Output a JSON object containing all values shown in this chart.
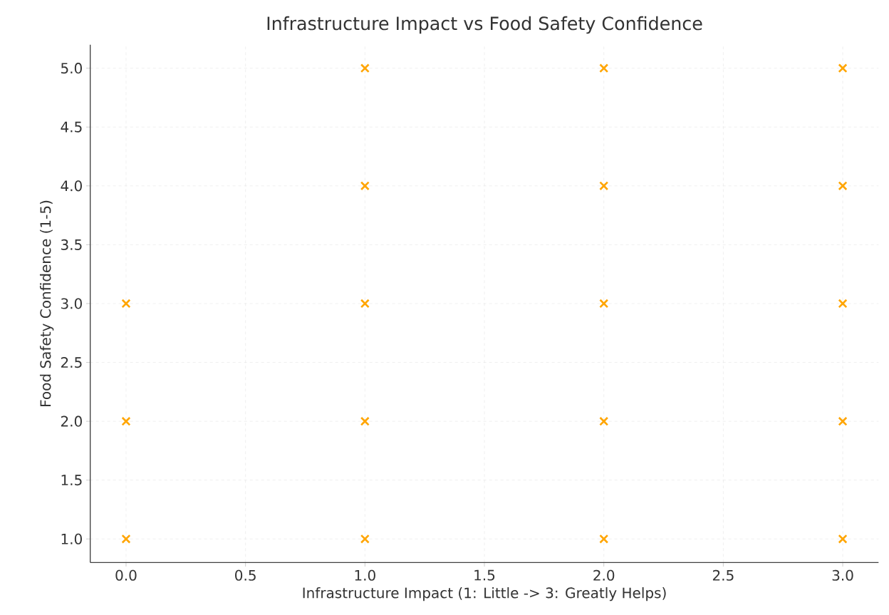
{
  "chart_data": {
    "type": "scatter",
    "title": "Infrastructure Impact vs Food Safety Confidence",
    "xlabel": "Infrastructure Impact (1: Little -> 3: Greatly Helps)",
    "ylabel": "Food Safety Confidence (1-5)",
    "x": [
      0,
      0,
      0,
      1,
      1,
      1,
      1,
      1,
      2,
      2,
      2,
      2,
      2,
      3,
      3,
      3,
      3,
      3
    ],
    "values": [
      1,
      2,
      3,
      1,
      2,
      3,
      4,
      5,
      1,
      2,
      3,
      4,
      5,
      1,
      2,
      3,
      4,
      5
    ],
    "color": "#ffa500",
    "marker": "cross",
    "grid": true,
    "xlim": [
      -0.15,
      3.15
    ],
    "ylim": [
      0.8,
      5.2
    ],
    "xticks": [
      {
        "value": 0,
        "label": "0.0"
      },
      {
        "value": 0.5,
        "label": "0.5"
      },
      {
        "value": 1,
        "label": "1.0"
      },
      {
        "value": 1.5,
        "label": "1.5"
      },
      {
        "value": 2,
        "label": "2.0"
      },
      {
        "value": 2.5,
        "label": "2.5"
      },
      {
        "value": 3,
        "label": "3.0"
      }
    ],
    "yticks": [
      {
        "value": 1,
        "label": "1.0"
      },
      {
        "value": 1.5,
        "label": "1.5"
      },
      {
        "value": 2,
        "label": "2.0"
      },
      {
        "value": 2.5,
        "label": "2.5"
      },
      {
        "value": 3,
        "label": "3.0"
      },
      {
        "value": 3.5,
        "label": "3.5"
      },
      {
        "value": 4,
        "label": "4.0"
      },
      {
        "value": 4.5,
        "label": "4.5"
      },
      {
        "value": 5,
        "label": "5.0"
      }
    ]
  }
}
